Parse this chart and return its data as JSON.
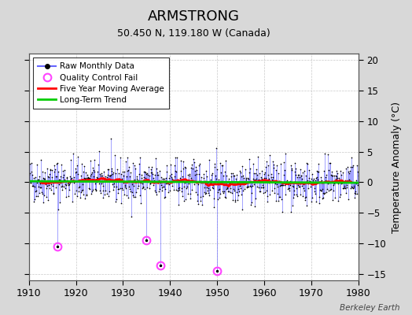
{
  "title": "ARMSTRONG",
  "subtitle": "50.450 N, 119.180 W (Canada)",
  "ylabel_right": "Temperature Anomaly (°C)",
  "watermark": "Berkeley Earth",
  "xlim": [
    1910,
    1980
  ],
  "ylim": [
    -16,
    21
  ],
  "yticks": [
    -15,
    -10,
    -5,
    0,
    5,
    10,
    15,
    20
  ],
  "xticks": [
    1910,
    1920,
    1930,
    1940,
    1950,
    1960,
    1970,
    1980
  ],
  "bg_color": "#d8d8d8",
  "plot_bg_color": "#ffffff",
  "raw_line_color": "#6666ff",
  "raw_marker_color": "#000000",
  "qc_fail_color": "#ff44ff",
  "moving_avg_color": "#ff0000",
  "trend_color": "#00cc00",
  "seed": 42,
  "n_months": 852,
  "start_year": 1910,
  "qc_fail_years": [
    1916,
    1935,
    1938,
    1950
  ],
  "qc_fail_values": [
    -10.5,
    -9.5,
    -13.5,
    -14.5
  ]
}
